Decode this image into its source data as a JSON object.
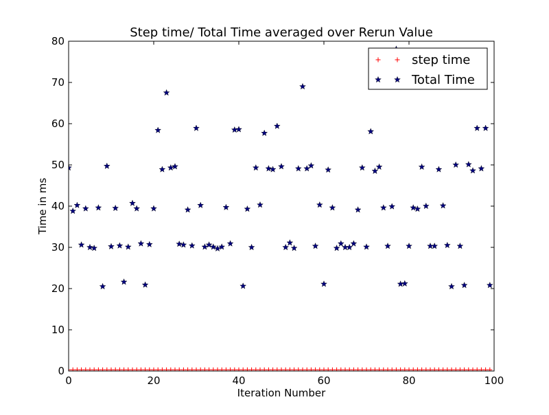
{
  "chart_data": {
    "type": "scatter",
    "title": "Step time/ Total Time averaged over Rerun Value",
    "xlabel": "Iteration Number",
    "ylabel": "Time in ms",
    "xlim": [
      0,
      100
    ],
    "ylim": [
      0,
      80
    ],
    "xticks": [
      0,
      20,
      40,
      60,
      80,
      100
    ],
    "yticks": [
      0,
      10,
      20,
      30,
      40,
      50,
      60,
      70,
      80
    ],
    "grid": false,
    "legend_position": "top-right",
    "x": [
      0,
      1,
      2,
      3,
      4,
      5,
      6,
      7,
      8,
      9,
      10,
      11,
      12,
      13,
      14,
      15,
      16,
      17,
      18,
      19,
      20,
      21,
      22,
      23,
      24,
      25,
      26,
      27,
      28,
      29,
      30,
      31,
      32,
      33,
      34,
      35,
      36,
      37,
      38,
      39,
      40,
      41,
      42,
      43,
      44,
      45,
      46,
      47,
      48,
      49,
      50,
      51,
      52,
      53,
      54,
      55,
      56,
      57,
      58,
      59,
      60,
      61,
      62,
      63,
      64,
      65,
      66,
      67,
      68,
      69,
      70,
      71,
      72,
      73,
      74,
      75,
      76,
      77,
      78,
      79,
      80,
      81,
      82,
      83,
      84,
      85,
      86,
      87,
      88,
      89,
      90,
      91,
      92,
      93,
      94,
      95,
      96,
      97,
      98,
      99
    ],
    "series": [
      {
        "name": "step time",
        "marker": "plus",
        "color": "#ff0000",
        "values": [
          0.3,
          0.3,
          0.3,
          0.3,
          0.3,
          0.3,
          0.3,
          0.3,
          0.3,
          0.3,
          0.3,
          0.3,
          0.3,
          0.3,
          0.3,
          0.3,
          0.3,
          0.3,
          0.3,
          0.3,
          0.3,
          0.3,
          0.3,
          0.3,
          0.3,
          0.3,
          0.3,
          0.3,
          0.3,
          0.3,
          0.3,
          0.3,
          0.3,
          0.3,
          0.3,
          0.3,
          0.3,
          0.3,
          0.3,
          0.3,
          0.3,
          0.3,
          0.3,
          0.3,
          0.3,
          0.3,
          0.3,
          0.3,
          0.3,
          0.3,
          0.3,
          0.3,
          0.3,
          0.3,
          0.3,
          0.3,
          0.3,
          0.3,
          0.3,
          0.3,
          0.3,
          0.3,
          0.3,
          0.3,
          0.3,
          0.3,
          0.3,
          0.3,
          0.3,
          0.3,
          0.3,
          0.3,
          0.3,
          0.3,
          0.3,
          0.3,
          0.3,
          0.3,
          0.3,
          0.3,
          0.3,
          0.3,
          0.3,
          0.3,
          0.3,
          0.3,
          0.3,
          0.3,
          0.3,
          0.3,
          0.3,
          0.3,
          0.3,
          0.3,
          0.3,
          0.3,
          0.3,
          0.3,
          0.3,
          0.3
        ]
      },
      {
        "name": "Total Time",
        "marker": "star",
        "color": "#00007f",
        "values": [
          49.3,
          38.8,
          40.2,
          30.6,
          39.4,
          30.0,
          29.8,
          39.6,
          20.5,
          49.7,
          30.2,
          39.5,
          30.4,
          21.6,
          30.1,
          40.7,
          39.4,
          30.9,
          20.9,
          30.7,
          39.4,
          58.4,
          48.9,
          67.5,
          49.3,
          49.6,
          30.8,
          30.6,
          39.1,
          30.4,
          58.9,
          40.2,
          30.1,
          30.6,
          30.1,
          29.7,
          30.1,
          39.7,
          30.9,
          58.5,
          58.6,
          20.6,
          39.3,
          30.0,
          49.3,
          40.3,
          57.7,
          49.1,
          48.9,
          59.4,
          49.6,
          30.0,
          31.1,
          29.8,
          49.1,
          69.0,
          49.1,
          49.8,
          30.3,
          40.3,
          21.1,
          48.8,
          39.6,
          29.8,
          30.9,
          30.0,
          30.0,
          30.9,
          39.1,
          49.3,
          30.1,
          58.1,
          48.5,
          49.5,
          39.6,
          30.3,
          39.9,
          78.1,
          21.1,
          21.2,
          30.3,
          39.6,
          39.3,
          49.5,
          40.0,
          30.3,
          30.3,
          48.9,
          40.1,
          30.5,
          20.5,
          50.0,
          30.3,
          20.8,
          50.1,
          48.6,
          58.9,
          49.1,
          58.9,
          20.8
        ]
      }
    ]
  }
}
